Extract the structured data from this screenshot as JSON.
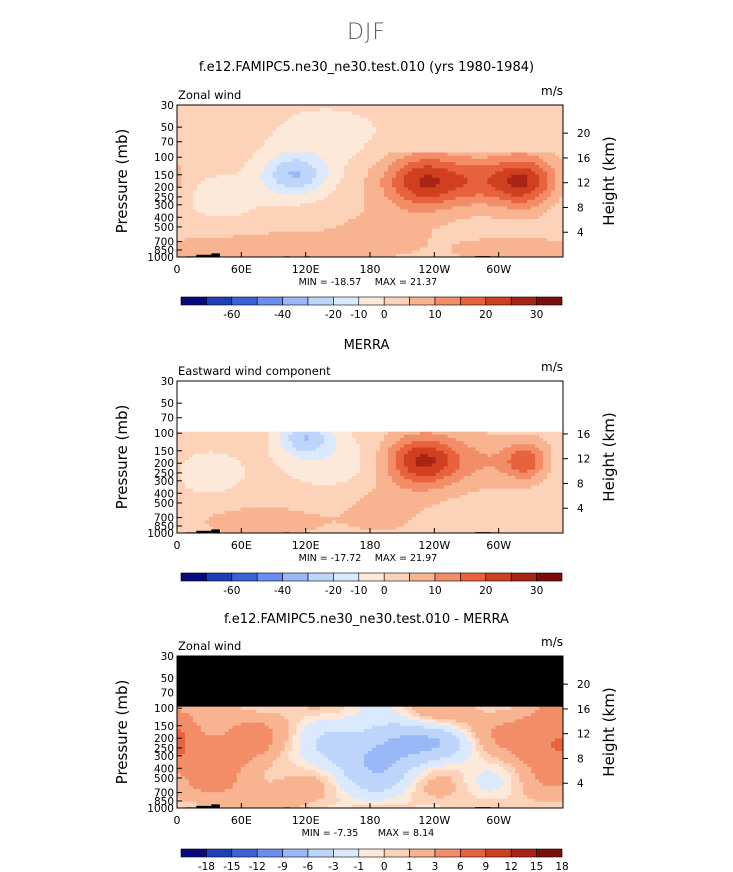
{
  "figure_title": "DJF",
  "chart_data": [
    {
      "type": "heatmap",
      "title": "f.e12.FAMIPC5.ne30_ne30.test.010 (yrs 1980-1984)",
      "left_label": "Zonal wind",
      "units": "m/s",
      "xlabel_ticks": [
        "0",
        "60E",
        "120E",
        "180",
        "120W",
        "60W"
      ],
      "x_values": [
        0,
        60,
        120,
        180,
        240,
        300
      ],
      "xlim": [
        0,
        360
      ],
      "ylabel": "Pressure (mb)",
      "y_ticks": [
        "30",
        "50",
        "70",
        "100",
        "150",
        "200",
        "250",
        "300",
        "400",
        "500",
        "700",
        "850",
        "1000"
      ],
      "y_values": [
        30,
        50,
        70,
        100,
        150,
        200,
        250,
        300,
        400,
        500,
        700,
        850,
        1000
      ],
      "ylim": [
        1000,
        30
      ],
      "y2label": "Height (km)",
      "y2_ticks": [
        "4",
        "8",
        "12",
        "16",
        "20"
      ],
      "y2_values": [
        4,
        8,
        12,
        16,
        20
      ],
      "min_label": "MIN = -18.57",
      "max_label": "MAX = 21.37",
      "min": -18.57,
      "max": 21.37,
      "colorbar_levels": [
        -70,
        -60,
        -50,
        -40,
        -30,
        -20,
        -15,
        -10,
        -5,
        0,
        5,
        10,
        15,
        20,
        25,
        30,
        35
      ],
      "colorbar_labels": [
        "-60",
        "-40",
        "-20",
        "-10",
        "0",
        "10",
        "20",
        "30"
      ],
      "features": [
        {
          "name": "jet core 120W",
          "lon": 232,
          "p": 175,
          "value": 21
        },
        {
          "name": "jet core 60W",
          "lon": 322,
          "p": 175,
          "value": 21
        },
        {
          "name": "easterly min 120E",
          "lon": 110,
          "p": 150,
          "value": -18.6
        }
      ]
    },
    {
      "type": "heatmap",
      "title": "MERRA",
      "left_label": "Eastward wind component",
      "units": "m/s",
      "xlabel_ticks": [
        "0",
        "60E",
        "120E",
        "180",
        "120W",
        "60W"
      ],
      "x_values": [
        0,
        60,
        120,
        180,
        240,
        300
      ],
      "xlim": [
        0,
        360
      ],
      "ylabel": "Pressure (mb)",
      "y_ticks": [
        "30",
        "50",
        "70",
        "100",
        "150",
        "200",
        "250",
        "300",
        "400",
        "500",
        "700",
        "850",
        "1000"
      ],
      "y_values": [
        30,
        50,
        70,
        100,
        150,
        200,
        250,
        300,
        400,
        500,
        700,
        850,
        1000
      ],
      "ylim": [
        1000,
        30
      ],
      "data_top_p": 100,
      "y2label": "Height (km)",
      "y2_ticks": [
        "4",
        "8",
        "12",
        "16"
      ],
      "y2_values": [
        4,
        8,
        12,
        16
      ],
      "min_label": "MIN = -17.72",
      "max_label": "MAX = 21.97",
      "min": -17.72,
      "max": 21.97,
      "colorbar_levels": [
        -70,
        -60,
        -50,
        -40,
        -30,
        -20,
        -15,
        -10,
        -5,
        0,
        5,
        10,
        15,
        20,
        25,
        30,
        35
      ],
      "colorbar_labels": [
        "-60",
        "-40",
        "-20",
        "-10",
        "0",
        "10",
        "20",
        "30"
      ],
      "features": [
        {
          "name": "jet core 120W",
          "lon": 232,
          "p": 190,
          "value": 22
        },
        {
          "name": "jet core 60W",
          "lon": 325,
          "p": 190,
          "value": 15
        },
        {
          "name": "easterly min 120E",
          "lon": 120,
          "p": 110,
          "value": -17.7
        }
      ]
    },
    {
      "type": "heatmap",
      "title": "f.e12.FAMIPC5.ne30_ne30.test.010 - MERRA",
      "left_label": "Zonal wind",
      "units": "m/s",
      "xlabel_ticks": [
        "0",
        "60E",
        "120E",
        "180",
        "120W",
        "60W"
      ],
      "x_values": [
        0,
        60,
        120,
        180,
        240,
        300
      ],
      "xlim": [
        0,
        360
      ],
      "ylabel": "Pressure (mb)",
      "y_ticks": [
        "30",
        "50",
        "70",
        "100",
        "150",
        "200",
        "250",
        "300",
        "400",
        "500",
        "700",
        "850",
        "1000"
      ],
      "y_values": [
        30,
        50,
        70,
        100,
        150,
        200,
        250,
        300,
        400,
        500,
        700,
        850,
        1000
      ],
      "ylim": [
        1000,
        30
      ],
      "data_top_p": 100,
      "y2label": "Height (km)",
      "y2_ticks": [
        "4",
        "8",
        "12",
        "16",
        "20"
      ],
      "y2_values": [
        4,
        8,
        12,
        16,
        20
      ],
      "min_label": "MIN = -7.35",
      "max_label": "MAX = 8.14",
      "min": -7.35,
      "max": 8.14,
      "colorbar_levels": [
        -21,
        -18,
        -15,
        -12,
        -9,
        -6,
        -3,
        -1,
        0,
        1,
        3,
        6,
        9,
        12,
        15,
        18,
        21
      ],
      "colorbar_labels": [
        "-18",
        "-15",
        "-12",
        "-9",
        "-6",
        "-3",
        "-1",
        "0",
        "1",
        "3",
        "6",
        "9",
        "12",
        "15",
        "18"
      ],
      "features": [
        {
          "name": "easterly bias center",
          "lon": 200,
          "p": 200,
          "value": -7.35
        },
        {
          "name": "westerly bias east",
          "lon": 345,
          "p": 200,
          "value": 8.1
        }
      ]
    }
  ],
  "colors": {
    "palette": [
      "#0a0a80",
      "#1e3fb8",
      "#3a63d6",
      "#6b8ff0",
      "#9ab8f7",
      "#bed5fb",
      "#dbe9fd",
      "#fde9d9",
      "#fcd2b8",
      "#f8b390",
      "#f38d68",
      "#e9623e",
      "#d0401f",
      "#a82414",
      "#7a0f0a"
    ],
    "missing": "#000000"
  }
}
